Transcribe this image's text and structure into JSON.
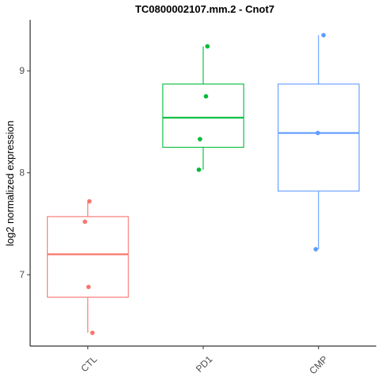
{
  "chart_data": {
    "type": "boxplot",
    "title": "TC0800002107.mm.2 - Cnot7",
    "xlabel": "",
    "ylabel": "log2 normalized expression",
    "ylim": [
      6.3,
      9.5
    ],
    "yticks": [
      7,
      8,
      9
    ],
    "categories": [
      "CTL",
      "PD1",
      "CMP"
    ],
    "colors": {
      "CTL": "#F8766D",
      "PD1": "#00BA38",
      "CMP": "#619CFF"
    },
    "boxes": [
      {
        "name": "CTL",
        "min": 6.43,
        "q1": 6.78,
        "median": 7.2,
        "q3": 7.57,
        "max": 7.72,
        "points": [
          7.72,
          7.52,
          6.88,
          6.43
        ]
      },
      {
        "name": "PD1",
        "min": 8.03,
        "q1": 8.25,
        "median": 8.54,
        "q3": 8.87,
        "max": 9.24,
        "points": [
          9.24,
          8.75,
          8.33,
          8.03
        ]
      },
      {
        "name": "CMP",
        "min": 7.25,
        "q1": 7.82,
        "median": 8.39,
        "q3": 8.87,
        "max": 9.35,
        "points": [
          9.35,
          8.39,
          7.25
        ]
      }
    ]
  }
}
